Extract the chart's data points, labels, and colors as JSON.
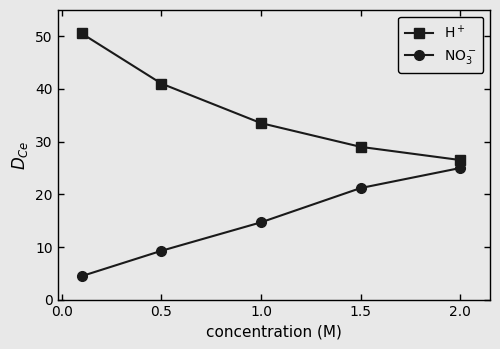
{
  "h_plus_x": [
    0.1,
    0.5,
    1.0,
    1.5,
    2.0
  ],
  "h_plus_y": [
    50.5,
    41.0,
    33.5,
    29.0,
    26.5
  ],
  "no3_x": [
    0.1,
    0.5,
    1.0,
    1.5,
    2.0
  ],
  "no3_y": [
    4.5,
    9.3,
    14.7,
    21.2,
    25.0
  ],
  "xlabel": "concentration (M)",
  "ylabel": "$D_{Ce}$",
  "legend_h": "H$^+$",
  "legend_no3": "NO$_3^-$",
  "xlim": [
    -0.02,
    2.15
  ],
  "ylim": [
    0,
    55
  ],
  "xticks": [
    0.0,
    0.5,
    1.0,
    1.5,
    2.0
  ],
  "yticks": [
    0,
    10,
    20,
    30,
    40,
    50
  ],
  "line_color": "#1a1a1a",
  "marker_square": "s",
  "marker_circle": "o",
  "markersize": 7,
  "linewidth": 1.5,
  "bg_color": "#e8e8e8",
  "fig_bg_color": "#e8e8e8"
}
